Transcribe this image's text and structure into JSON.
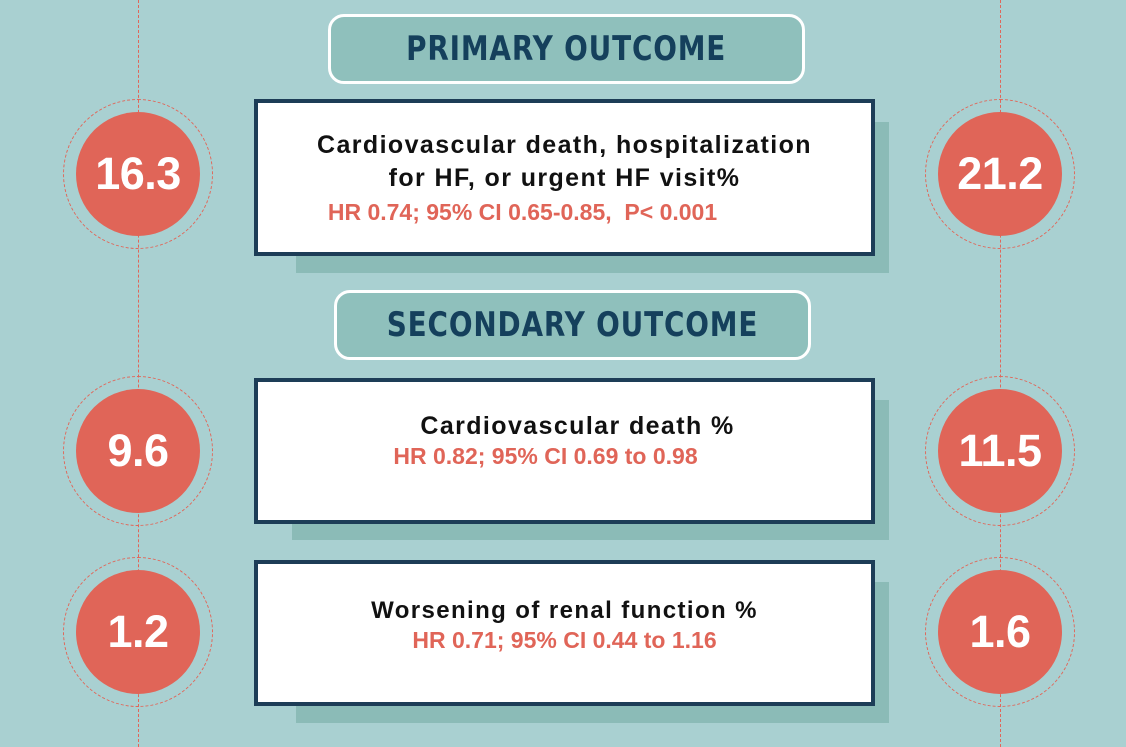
{
  "primary": {
    "heading": "PRIMARY OUTCOME",
    "rows": [
      {
        "left_value": "16.3",
        "right_value": "21.2",
        "title_line1": "Cardiovascular death, hospitalization",
        "title_line2": "for HF, or urgent HF visit%",
        "stat": "HR 0.74; 95% CI 0.65-0.85,  P< 0.001"
      }
    ]
  },
  "secondary": {
    "heading": "SECONDARY OUTCOME",
    "rows": [
      {
        "left_value": "9.6",
        "right_value": "11.5",
        "title": "Cardiovascular death %",
        "stat": "HR 0.82; 95% CI 0.69 to 0.98"
      },
      {
        "left_value": "1.2",
        "right_value": "1.6",
        "title": "Worsening of renal function %",
        "stat": "HR 0.71; 95% CI 0.44 to 1.16"
      }
    ]
  },
  "colors": {
    "background": "#a9d0d1",
    "accent": "#e06558",
    "heading_text": "#15405c",
    "box_border": "#1d3d57"
  }
}
